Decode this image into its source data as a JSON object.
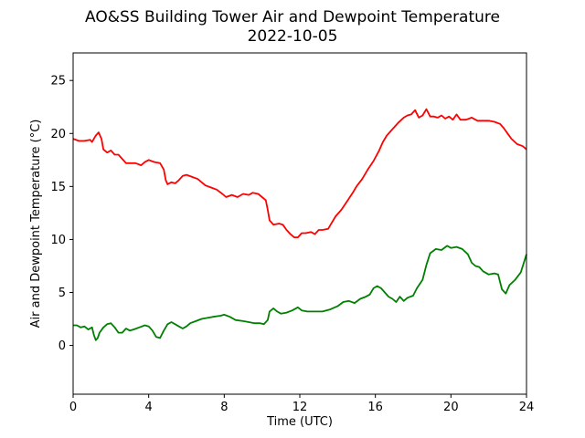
{
  "chart_data": {
    "type": "line",
    "title": "AO&SS Building Tower Air and Dewpoint Temperature",
    "subtitle": "2022-10-05",
    "xlabel": "Time (UTC)",
    "ylabel": "Air and Dewpoint Temperature (°C)",
    "xlim": [
      0,
      24
    ],
    "ylim": [
      -4.6,
      27.6
    ],
    "x_ticks": [
      0,
      4,
      8,
      12,
      16,
      20,
      24
    ],
    "y_ticks": [
      0,
      5,
      10,
      15,
      20,
      25
    ],
    "grid": false,
    "legend": "none",
    "series": [
      {
        "color": "#ff0000",
        "points": [
          [
            0.0,
            19.5
          ],
          [
            0.3,
            19.3
          ],
          [
            0.6,
            19.3
          ],
          [
            0.9,
            19.4
          ],
          [
            1.0,
            19.2
          ],
          [
            1.2,
            19.8
          ],
          [
            1.35,
            20.1
          ],
          [
            1.5,
            19.5
          ],
          [
            1.6,
            18.5
          ],
          [
            1.8,
            18.2
          ],
          [
            2.0,
            18.4
          ],
          [
            2.2,
            18.0
          ],
          [
            2.4,
            18.0
          ],
          [
            2.6,
            17.6
          ],
          [
            2.8,
            17.2
          ],
          [
            3.0,
            17.2
          ],
          [
            3.3,
            17.2
          ],
          [
            3.6,
            17.0
          ],
          [
            3.8,
            17.3
          ],
          [
            4.0,
            17.5
          ],
          [
            4.3,
            17.3
          ],
          [
            4.6,
            17.2
          ],
          [
            4.8,
            16.6
          ],
          [
            4.9,
            15.6
          ],
          [
            5.0,
            15.2
          ],
          [
            5.2,
            15.4
          ],
          [
            5.4,
            15.3
          ],
          [
            5.6,
            15.6
          ],
          [
            5.8,
            16.0
          ],
          [
            6.0,
            16.1
          ],
          [
            6.3,
            15.9
          ],
          [
            6.6,
            15.7
          ],
          [
            6.8,
            15.4
          ],
          [
            7.0,
            15.1
          ],
          [
            7.3,
            14.9
          ],
          [
            7.6,
            14.7
          ],
          [
            7.9,
            14.3
          ],
          [
            8.1,
            14.0
          ],
          [
            8.4,
            14.2
          ],
          [
            8.7,
            14.0
          ],
          [
            9.0,
            14.3
          ],
          [
            9.3,
            14.2
          ],
          [
            9.5,
            14.4
          ],
          [
            9.8,
            14.3
          ],
          [
            10.0,
            14.0
          ],
          [
            10.2,
            13.7
          ],
          [
            10.3,
            12.8
          ],
          [
            10.4,
            11.8
          ],
          [
            10.6,
            11.4
          ],
          [
            10.9,
            11.5
          ],
          [
            11.1,
            11.4
          ],
          [
            11.3,
            10.9
          ],
          [
            11.5,
            10.5
          ],
          [
            11.7,
            10.2
          ],
          [
            11.9,
            10.2
          ],
          [
            12.1,
            10.6
          ],
          [
            12.3,
            10.6
          ],
          [
            12.6,
            10.7
          ],
          [
            12.8,
            10.5
          ],
          [
            13.0,
            10.9
          ],
          [
            13.2,
            10.9
          ],
          [
            13.5,
            11.0
          ],
          [
            13.7,
            11.6
          ],
          [
            13.9,
            12.2
          ],
          [
            14.2,
            12.8
          ],
          [
            14.5,
            13.6
          ],
          [
            14.8,
            14.4
          ],
          [
            15.0,
            15.0
          ],
          [
            15.3,
            15.7
          ],
          [
            15.6,
            16.6
          ],
          [
            15.9,
            17.4
          ],
          [
            16.2,
            18.4
          ],
          [
            16.4,
            19.2
          ],
          [
            16.6,
            19.8
          ],
          [
            16.9,
            20.4
          ],
          [
            17.2,
            21.0
          ],
          [
            17.5,
            21.5
          ],
          [
            17.7,
            21.7
          ],
          [
            17.9,
            21.8
          ],
          [
            18.1,
            22.2
          ],
          [
            18.3,
            21.5
          ],
          [
            18.5,
            21.7
          ],
          [
            18.7,
            22.3
          ],
          [
            18.9,
            21.6
          ],
          [
            19.1,
            21.6
          ],
          [
            19.3,
            21.5
          ],
          [
            19.5,
            21.7
          ],
          [
            19.7,
            21.4
          ],
          [
            19.9,
            21.6
          ],
          [
            20.1,
            21.3
          ],
          [
            20.3,
            21.8
          ],
          [
            20.5,
            21.3
          ],
          [
            20.8,
            21.3
          ],
          [
            21.1,
            21.5
          ],
          [
            21.4,
            21.2
          ],
          [
            21.7,
            21.2
          ],
          [
            22.0,
            21.2
          ],
          [
            22.3,
            21.1
          ],
          [
            22.6,
            20.9
          ],
          [
            22.8,
            20.5
          ],
          [
            23.0,
            20.0
          ],
          [
            23.2,
            19.5
          ],
          [
            23.5,
            19.0
          ],
          [
            23.8,
            18.8
          ],
          [
            24.0,
            18.5
          ]
        ]
      },
      {
        "color": "#008000",
        "points": [
          [
            0.0,
            1.9
          ],
          [
            0.2,
            1.9
          ],
          [
            0.4,
            1.7
          ],
          [
            0.6,
            1.8
          ],
          [
            0.8,
            1.5
          ],
          [
            1.0,
            1.7
          ],
          [
            1.1,
            1.0
          ],
          [
            1.2,
            0.5
          ],
          [
            1.3,
            0.7
          ],
          [
            1.4,
            1.2
          ],
          [
            1.6,
            1.7
          ],
          [
            1.8,
            2.0
          ],
          [
            2.0,
            2.1
          ],
          [
            2.2,
            1.7
          ],
          [
            2.4,
            1.2
          ],
          [
            2.6,
            1.2
          ],
          [
            2.8,
            1.6
          ],
          [
            3.0,
            1.4
          ],
          [
            3.2,
            1.5
          ],
          [
            3.5,
            1.7
          ],
          [
            3.8,
            1.9
          ],
          [
            4.0,
            1.8
          ],
          [
            4.2,
            1.4
          ],
          [
            4.4,
            0.8
          ],
          [
            4.6,
            0.7
          ],
          [
            4.8,
            1.4
          ],
          [
            5.0,
            2.0
          ],
          [
            5.2,
            2.2
          ],
          [
            5.4,
            2.0
          ],
          [
            5.6,
            1.8
          ],
          [
            5.8,
            1.6
          ],
          [
            6.0,
            1.8
          ],
          [
            6.2,
            2.1
          ],
          [
            6.5,
            2.3
          ],
          [
            6.8,
            2.5
          ],
          [
            7.1,
            2.6
          ],
          [
            7.4,
            2.7
          ],
          [
            7.8,
            2.8
          ],
          [
            8.0,
            2.9
          ],
          [
            8.3,
            2.7
          ],
          [
            8.6,
            2.4
          ],
          [
            9.0,
            2.3
          ],
          [
            9.3,
            2.2
          ],
          [
            9.6,
            2.1
          ],
          [
            9.9,
            2.1
          ],
          [
            10.1,
            2.0
          ],
          [
            10.3,
            2.4
          ],
          [
            10.4,
            3.2
          ],
          [
            10.6,
            3.5
          ],
          [
            10.8,
            3.2
          ],
          [
            11.0,
            3.0
          ],
          [
            11.3,
            3.1
          ],
          [
            11.6,
            3.3
          ],
          [
            11.9,
            3.6
          ],
          [
            12.1,
            3.3
          ],
          [
            12.4,
            3.2
          ],
          [
            12.8,
            3.2
          ],
          [
            13.2,
            3.2
          ],
          [
            13.6,
            3.4
          ],
          [
            14.0,
            3.7
          ],
          [
            14.3,
            4.1
          ],
          [
            14.6,
            4.2
          ],
          [
            14.9,
            4.0
          ],
          [
            15.2,
            4.4
          ],
          [
            15.5,
            4.6
          ],
          [
            15.7,
            4.8
          ],
          [
            15.9,
            5.4
          ],
          [
            16.1,
            5.6
          ],
          [
            16.3,
            5.4
          ],
          [
            16.5,
            5.0
          ],
          [
            16.7,
            4.6
          ],
          [
            16.9,
            4.4
          ],
          [
            17.1,
            4.1
          ],
          [
            17.3,
            4.6
          ],
          [
            17.5,
            4.2
          ],
          [
            17.7,
            4.5
          ],
          [
            18.0,
            4.7
          ],
          [
            18.2,
            5.4
          ],
          [
            18.5,
            6.2
          ],
          [
            18.7,
            7.6
          ],
          [
            18.9,
            8.7
          ],
          [
            19.2,
            9.1
          ],
          [
            19.5,
            9.0
          ],
          [
            19.8,
            9.4
          ],
          [
            20.0,
            9.2
          ],
          [
            20.3,
            9.3
          ],
          [
            20.6,
            9.1
          ],
          [
            20.9,
            8.6
          ],
          [
            21.1,
            7.8
          ],
          [
            21.3,
            7.5
          ],
          [
            21.5,
            7.4
          ],
          [
            21.7,
            7.0
          ],
          [
            22.0,
            6.7
          ],
          [
            22.3,
            6.8
          ],
          [
            22.5,
            6.7
          ],
          [
            22.7,
            5.3
          ],
          [
            22.9,
            4.9
          ],
          [
            23.1,
            5.7
          ],
          [
            23.4,
            6.2
          ],
          [
            23.7,
            6.9
          ],
          [
            24.0,
            8.6
          ]
        ]
      }
    ]
  }
}
